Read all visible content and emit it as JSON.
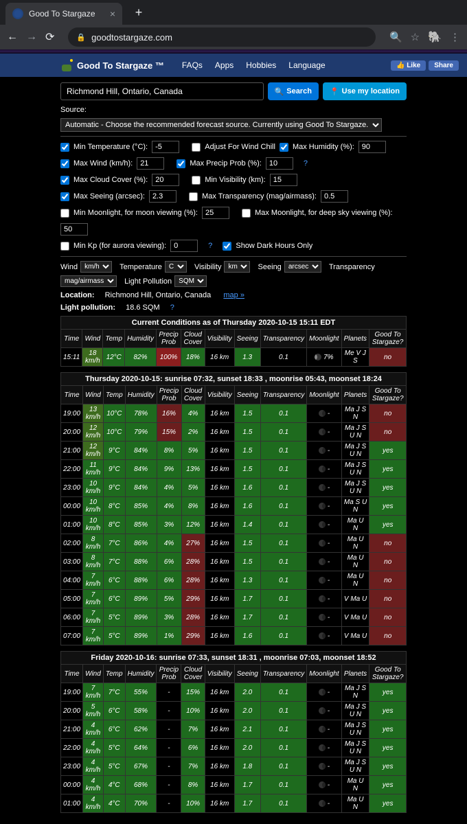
{
  "browser": {
    "tab_title": "Good To Stargaze",
    "url": "goodtostargaze.com"
  },
  "nav": {
    "brand": "Good To Stargaze ™",
    "links": [
      "FAQs",
      "Apps",
      "Hobbies",
      "Language"
    ],
    "fb_like": "Like",
    "fb_share": "Share"
  },
  "search": {
    "value": "Richmond Hill, Ontario, Canada",
    "search_btn": "Search",
    "location_btn": "Use my location"
  },
  "source": {
    "label": "Source:",
    "value": "Automatic - Choose the recommended forecast source. Currently using Good To Stargaze."
  },
  "filters": {
    "min_temp": {
      "label": "Min Temperature (°C):",
      "value": "-5",
      "checked": true
    },
    "wind_chill": {
      "label": "Adjust For Wind Chill",
      "checked": false
    },
    "max_hum": {
      "label": "Max Humidity (%):",
      "value": "90",
      "checked": true
    },
    "max_wind": {
      "label": "Max Wind (km/h):",
      "value": "21",
      "checked": true
    },
    "max_precip": {
      "label": "Max Precip Prob (%):",
      "value": "10",
      "checked": true
    },
    "max_cloud": {
      "label": "Max Cloud Cover (%):",
      "value": "20",
      "checked": true
    },
    "min_vis": {
      "label": "Min Visibility (km):",
      "value": "15",
      "checked": false
    },
    "max_seeing": {
      "label": "Max Seeing (arcsec):",
      "value": "2.3",
      "checked": true
    },
    "max_trans": {
      "label": "Max Transparency (mag/airmass):",
      "value": "0.5",
      "checked": false
    },
    "min_moon": {
      "label": "Min Moonlight, for moon viewing (%):",
      "value": "25",
      "checked": false
    },
    "max_moon": {
      "label": "Max Moonlight, for deep sky viewing (%):",
      "value": "50",
      "checked": false
    },
    "min_kp": {
      "label": "Min Kp (for aurora viewing):",
      "value": "0",
      "checked": false
    },
    "dark_hours": {
      "label": "Show Dark Hours Only",
      "checked": true
    }
  },
  "units": {
    "wind_l": "Wind",
    "wind_v": "km/h",
    "temp_l": "Temperature",
    "temp_v": "C",
    "vis_l": "Visibility",
    "vis_v": "km",
    "seeing_l": "Seeing",
    "seeing_v": "arcsec",
    "trans_l": "Transparency",
    "trans_v": "mag/airmass",
    "lp_l": "Light Pollution",
    "lp_v": "SQM"
  },
  "loc": {
    "label": "Location:",
    "value": "Richmond Hill, Ontario, Canada",
    "map": "map »"
  },
  "lp": {
    "label": "Light pollution:",
    "value": "18.6 SQM"
  },
  "headers": [
    "Time",
    "Wind",
    "Temp",
    "Humidity",
    "Precip Prob",
    "Cloud Cover",
    "Visibility",
    "Seeing",
    "Transparency",
    "Moonlight",
    "Planets",
    "Good To Stargaze?"
  ],
  "current": {
    "title": "Current Conditions as of Thursday 2020-10-15 15:11 EDT",
    "row": {
      "time": "15:11",
      "wind": "18 km/h",
      "temp": "12°C",
      "hum": "82%",
      "precip": "100%",
      "cloud": "18%",
      "vis": "16 km",
      "seeing": "1.3",
      "trans": "0.1",
      "moon": "7%",
      "planets": "Me V J S",
      "good": "no"
    }
  },
  "day1": {
    "title": "Thursday 2020-10-15: sunrise 07:32, sunset 18:33 , moonrise 05:43, moonset 18:24",
    "rows": [
      {
        "time": "19:00",
        "wind": "13 km/h",
        "temp": "10°C",
        "hum": "78%",
        "precip": "16%",
        "cloud": "4%",
        "vis": "16 km",
        "seeing": "1.5",
        "trans": "0.1",
        "planets": "Ma J S N",
        "good": "no",
        "c": {
          "wind": "ok",
          "temp": "good",
          "hum": "good",
          "precip": "bad",
          "cloud": "good",
          "seeing": "good",
          "trans": "good",
          "good": "bad"
        }
      },
      {
        "time": "20:00",
        "wind": "12 km/h",
        "temp": "10°C",
        "hum": "79%",
        "precip": "15%",
        "cloud": "2%",
        "vis": "16 km",
        "seeing": "1.5",
        "trans": "0.1",
        "planets": "Ma J S U N",
        "good": "no",
        "c": {
          "wind": "ok",
          "temp": "good",
          "hum": "good",
          "precip": "bad",
          "cloud": "good",
          "seeing": "good",
          "trans": "good",
          "good": "bad"
        }
      },
      {
        "time": "21:00",
        "wind": "12 km/h",
        "temp": "9°C",
        "hum": "84%",
        "precip": "8%",
        "cloud": "5%",
        "vis": "16 km",
        "seeing": "1.5",
        "trans": "0.1",
        "planets": "Ma J S U N",
        "good": "yes",
        "c": {
          "wind": "ok",
          "temp": "good",
          "hum": "good",
          "precip": "good",
          "cloud": "good",
          "seeing": "good",
          "trans": "good",
          "good": "good"
        }
      },
      {
        "time": "22:00",
        "wind": "11 km/h",
        "temp": "9°C",
        "hum": "84%",
        "precip": "9%",
        "cloud": "13%",
        "vis": "16 km",
        "seeing": "1.5",
        "trans": "0.1",
        "planets": "Ma J S U N",
        "good": "yes",
        "c": {
          "wind": "good",
          "temp": "good",
          "hum": "good",
          "precip": "good",
          "cloud": "good",
          "seeing": "good",
          "trans": "good",
          "good": "good"
        }
      },
      {
        "time": "23:00",
        "wind": "10 km/h",
        "temp": "9°C",
        "hum": "84%",
        "precip": "4%",
        "cloud": "5%",
        "vis": "16 km",
        "seeing": "1.6",
        "trans": "0.1",
        "planets": "Ma J S U N",
        "good": "yes",
        "c": {
          "wind": "good",
          "temp": "good",
          "hum": "good",
          "precip": "good",
          "cloud": "good",
          "seeing": "good",
          "trans": "good",
          "good": "good"
        }
      },
      {
        "time": "00:00",
        "wind": "10 km/h",
        "temp": "8°C",
        "hum": "85%",
        "precip": "4%",
        "cloud": "8%",
        "vis": "16 km",
        "seeing": "1.6",
        "trans": "0.1",
        "planets": "Ma S U N",
        "good": "yes",
        "c": {
          "wind": "good",
          "temp": "good",
          "hum": "good",
          "precip": "good",
          "cloud": "good",
          "seeing": "good",
          "trans": "good",
          "good": "good"
        }
      },
      {
        "time": "01:00",
        "wind": "10 km/h",
        "temp": "8°C",
        "hum": "85%",
        "precip": "3%",
        "cloud": "12%",
        "vis": "16 km",
        "seeing": "1.4",
        "trans": "0.1",
        "planets": "Ma U N",
        "good": "yes",
        "c": {
          "wind": "good",
          "temp": "good",
          "hum": "good",
          "precip": "good",
          "cloud": "good",
          "seeing": "good",
          "trans": "good",
          "good": "good"
        }
      },
      {
        "time": "02:00",
        "wind": "8 km/h",
        "temp": "7°C",
        "hum": "86%",
        "precip": "4%",
        "cloud": "27%",
        "vis": "16 km",
        "seeing": "1.5",
        "trans": "0.1",
        "planets": "Ma U N",
        "good": "no",
        "c": {
          "wind": "good",
          "temp": "good",
          "hum": "good",
          "precip": "good",
          "cloud": "bad",
          "seeing": "good",
          "trans": "good",
          "good": "bad"
        }
      },
      {
        "time": "03:00",
        "wind": "8 km/h",
        "temp": "7°C",
        "hum": "88%",
        "precip": "6%",
        "cloud": "28%",
        "vis": "16 km",
        "seeing": "1.5",
        "trans": "0.1",
        "planets": "Ma U N",
        "good": "no",
        "c": {
          "wind": "good",
          "temp": "good",
          "hum": "good",
          "precip": "good",
          "cloud": "bad",
          "seeing": "good",
          "trans": "good",
          "good": "bad"
        }
      },
      {
        "time": "04:00",
        "wind": "7 km/h",
        "temp": "6°C",
        "hum": "88%",
        "precip": "6%",
        "cloud": "28%",
        "vis": "16 km",
        "seeing": "1.3",
        "trans": "0.1",
        "planets": "Ma U N",
        "good": "no",
        "c": {
          "wind": "good",
          "temp": "good",
          "hum": "good",
          "precip": "good",
          "cloud": "bad",
          "seeing": "good",
          "trans": "good",
          "good": "bad"
        }
      },
      {
        "time": "05:00",
        "wind": "7 km/h",
        "temp": "6°C",
        "hum": "89%",
        "precip": "5%",
        "cloud": "29%",
        "vis": "16 km",
        "seeing": "1.7",
        "trans": "0.1",
        "planets": "V Ma U",
        "good": "no",
        "c": {
          "wind": "good",
          "temp": "good",
          "hum": "good",
          "precip": "good",
          "cloud": "bad",
          "seeing": "good",
          "trans": "good",
          "good": "bad"
        }
      },
      {
        "time": "06:00",
        "wind": "7 km/h",
        "temp": "5°C",
        "hum": "89%",
        "precip": "3%",
        "cloud": "28%",
        "vis": "16 km",
        "seeing": "1.7",
        "trans": "0.1",
        "planets": "V Ma U",
        "good": "no",
        "c": {
          "wind": "good",
          "temp": "good",
          "hum": "good",
          "precip": "good",
          "cloud": "bad",
          "seeing": "good",
          "trans": "good",
          "good": "bad"
        }
      },
      {
        "time": "07:00",
        "wind": "7 km/h",
        "temp": "5°C",
        "hum": "89%",
        "precip": "1%",
        "cloud": "29%",
        "vis": "16 km",
        "seeing": "1.6",
        "trans": "0.1",
        "planets": "V Ma U",
        "good": "no",
        "c": {
          "wind": "good",
          "temp": "good",
          "hum": "good",
          "precip": "good",
          "cloud": "bad",
          "seeing": "good",
          "trans": "good",
          "good": "bad"
        }
      }
    ]
  },
  "day2": {
    "title": "Friday 2020-10-16: sunrise 07:33, sunset 18:31 , moonrise 07:03, moonset 18:52",
    "rows": [
      {
        "time": "19:00",
        "wind": "7 km/h",
        "temp": "7°C",
        "hum": "55%",
        "precip": "-",
        "cloud": "15%",
        "vis": "16 km",
        "seeing": "2.0",
        "trans": "0.1",
        "planets": "Ma J S N",
        "good": "yes",
        "c": {
          "wind": "good",
          "temp": "good",
          "hum": "good",
          "cloud": "good",
          "seeing": "good",
          "trans": "good",
          "good": "good"
        }
      },
      {
        "time": "20:00",
        "wind": "5 km/h",
        "temp": "6°C",
        "hum": "58%",
        "precip": "-",
        "cloud": "10%",
        "vis": "16 km",
        "seeing": "2.0",
        "trans": "0.1",
        "planets": "Ma J S U N",
        "good": "yes",
        "c": {
          "wind": "good",
          "temp": "good",
          "hum": "good",
          "cloud": "good",
          "seeing": "good",
          "trans": "good",
          "good": "good"
        }
      },
      {
        "time": "21:00",
        "wind": "4 km/h",
        "temp": "6°C",
        "hum": "62%",
        "precip": "-",
        "cloud": "7%",
        "vis": "16 km",
        "seeing": "2.1",
        "trans": "0.1",
        "planets": "Ma J S U N",
        "good": "yes",
        "c": {
          "wind": "good",
          "temp": "good",
          "hum": "good",
          "cloud": "good",
          "seeing": "good",
          "trans": "good",
          "good": "good"
        }
      },
      {
        "time": "22:00",
        "wind": "4 km/h",
        "temp": "5°C",
        "hum": "64%",
        "precip": "-",
        "cloud": "6%",
        "vis": "16 km",
        "seeing": "2.0",
        "trans": "0.1",
        "planets": "Ma J S U N",
        "good": "yes",
        "c": {
          "wind": "good",
          "temp": "good",
          "hum": "good",
          "cloud": "good",
          "seeing": "good",
          "trans": "good",
          "good": "good"
        }
      },
      {
        "time": "23:00",
        "wind": "4 km/h",
        "temp": "5°C",
        "hum": "67%",
        "precip": "-",
        "cloud": "7%",
        "vis": "16 km",
        "seeing": "1.8",
        "trans": "0.1",
        "planets": "Ma J S U N",
        "good": "yes",
        "c": {
          "wind": "good",
          "temp": "good",
          "hum": "good",
          "cloud": "good",
          "seeing": "good",
          "trans": "good",
          "good": "good"
        }
      },
      {
        "time": "00:00",
        "wind": "4 km/h",
        "temp": "4°C",
        "hum": "68%",
        "precip": "-",
        "cloud": "8%",
        "vis": "16 km",
        "seeing": "1.7",
        "trans": "0.1",
        "planets": "Ma U N",
        "good": "yes",
        "c": {
          "wind": "good",
          "temp": "good",
          "hum": "good",
          "cloud": "good",
          "seeing": "good",
          "trans": "good",
          "good": "good"
        }
      },
      {
        "time": "01:00",
        "wind": "4 km/h",
        "temp": "4°C",
        "hum": "70%",
        "precip": "-",
        "cloud": "10%",
        "vis": "16 km",
        "seeing": "1.7",
        "trans": "0.1",
        "planets": "Ma U N",
        "good": "yes",
        "c": {
          "wind": "good",
          "temp": "good",
          "hum": "good",
          "cloud": "good",
          "seeing": "good",
          "trans": "good",
          "good": "good"
        }
      }
    ]
  }
}
